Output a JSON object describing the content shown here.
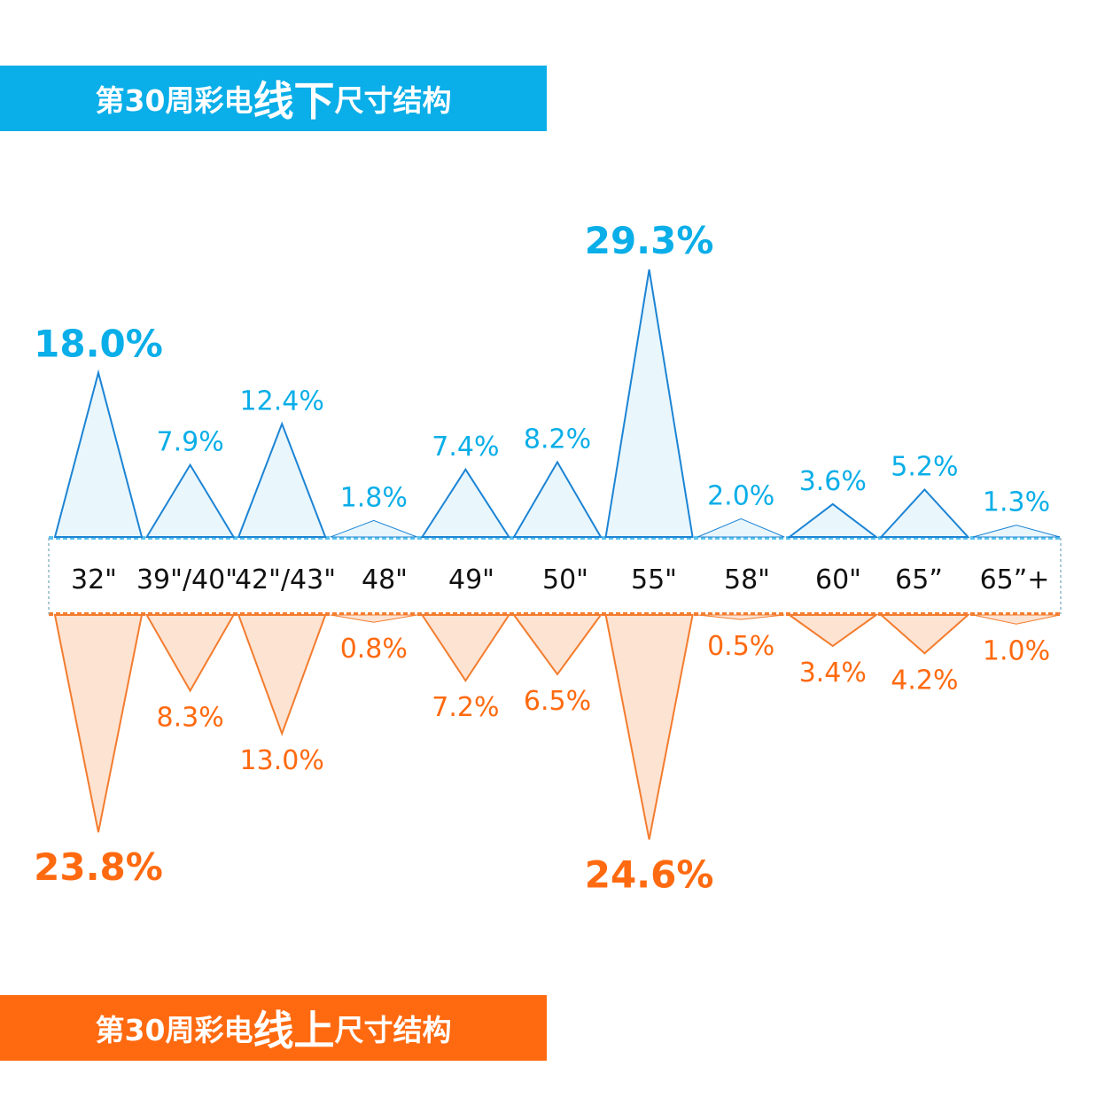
{
  "colors": {
    "offline": "#0aaee8",
    "offline_stroke": "#1c84d4",
    "offline_fill": "#e9f6fc",
    "online": "#ff6a10",
    "online_stroke": "#f37c2e",
    "online_fill": "#fde3d2",
    "axis_text": "#111111"
  },
  "titles": {
    "top": {
      "prefix": "第30周彩电",
      "emphasis": "线下",
      "suffix": "尺寸结构"
    },
    "bottom": {
      "prefix": "第30周彩电",
      "emphasis": "线上",
      "suffix": "尺寸结构"
    }
  },
  "chart_data": {
    "type": "bar",
    "categories": [
      "32\"",
      "39\"/40\"",
      "42\"/43\"",
      "48\"",
      "49\"",
      "50\"",
      "55\"",
      "58\"",
      "60\"",
      "65”",
      "65”+"
    ],
    "series": [
      {
        "values": [
          18.0,
          7.9,
          12.4,
          1.8,
          7.4,
          8.2,
          29.3,
          2.0,
          3.6,
          5.2,
          1.3
        ],
        "labels": [
          "18.0%",
          "7.9%",
          "12.4%",
          "1.8%",
          "7.4%",
          "8.2%",
          "29.3%",
          "2.0%",
          "3.6%",
          "5.2%",
          "1.3%"
        ]
      },
      {
        "values": [
          23.8,
          8.3,
          13.0,
          0.8,
          7.2,
          6.5,
          24.6,
          0.5,
          3.4,
          4.2,
          1.0
        ],
        "labels": [
          "23.8%",
          "8.3%",
          "13.0%",
          "0.8%",
          "7.2%",
          "6.5%",
          "24.6%",
          "0.5%",
          "3.4%",
          "4.2%",
          "1.0%"
        ]
      }
    ],
    "unit": "%",
    "highlighted": [
      "32\"",
      "55\""
    ]
  }
}
